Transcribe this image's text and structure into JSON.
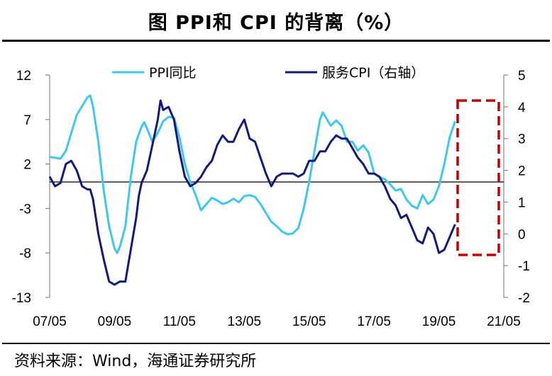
{
  "source": "资料来源：Wind，海通证券研究所",
  "chart_data": {
    "type": "line",
    "title": "图  PPI和 CPI 的背离（%）",
    "x_axis": {
      "tick_labels": [
        "07/05",
        "09/05",
        "11/05",
        "13/05",
        "15/05",
        "17/05",
        "19/05",
        "21/05"
      ],
      "range_months": [
        0,
        168
      ]
    },
    "y_left": {
      "ticks": [
        12,
        7,
        2,
        -3,
        -8,
        -13
      ],
      "range": [
        -13,
        12
      ]
    },
    "y_right": {
      "ticks": [
        5,
        4,
        3,
        2,
        1,
        0,
        -1,
        -2
      ],
      "range": [
        -2,
        5
      ],
      "label": "右轴"
    },
    "highlight": {
      "from_month": 153,
      "to_month": 168,
      "label": "dashed box"
    },
    "series": [
      {
        "name": "PPI同比",
        "axis": "left",
        "color": "#3ec8ef",
        "points": [
          [
            0,
            2.8
          ],
          [
            2,
            2.7
          ],
          [
            4,
            2.6
          ],
          [
            6,
            3.5
          ],
          [
            8,
            5.5
          ],
          [
            10,
            7.5
          ],
          [
            12,
            8.5
          ],
          [
            14,
            9.5
          ],
          [
            15,
            9.7
          ],
          [
            16,
            8.5
          ],
          [
            18,
            4.5
          ],
          [
            20,
            -1
          ],
          [
            22,
            -5
          ],
          [
            24,
            -7.5
          ],
          [
            25,
            -8
          ],
          [
            26,
            -7.3
          ],
          [
            28,
            -5
          ],
          [
            30,
            0.5
          ],
          [
            32,
            4.5
          ],
          [
            34,
            6.2
          ],
          [
            35,
            6.7
          ],
          [
            36,
            6
          ],
          [
            38,
            4.5
          ],
          [
            40,
            5.5
          ],
          [
            42,
            6.8
          ],
          [
            44,
            7.3
          ],
          [
            46,
            7.2
          ],
          [
            48,
            5
          ],
          [
            50,
            2
          ],
          [
            52,
            0
          ],
          [
            54,
            -1.5
          ],
          [
            56,
            -3.2
          ],
          [
            58,
            -2.5
          ],
          [
            60,
            -1.8
          ],
          [
            62,
            -2.1
          ],
          [
            64,
            -2.5
          ],
          [
            66,
            -2.3
          ],
          [
            68,
            -1.9
          ],
          [
            70,
            -2.3
          ],
          [
            72,
            -1.6
          ],
          [
            74,
            -1.5
          ],
          [
            76,
            -1.7
          ],
          [
            78,
            -2.5
          ],
          [
            80,
            -3.5
          ],
          [
            82,
            -4.5
          ],
          [
            84,
            -5
          ],
          [
            86,
            -5.6
          ],
          [
            88,
            -5.9
          ],
          [
            90,
            -5.8
          ],
          [
            92,
            -5.2
          ],
          [
            94,
            -3
          ],
          [
            96,
            0
          ],
          [
            98,
            3.5
          ],
          [
            100,
            7
          ],
          [
            101,
            7.8
          ],
          [
            102,
            7.3
          ],
          [
            104,
            6.3
          ],
          [
            106,
            6.9
          ],
          [
            108,
            6.3
          ],
          [
            110,
            4.5
          ],
          [
            112,
            4.5
          ],
          [
            114,
            3.5
          ],
          [
            116,
            4.1
          ],
          [
            118,
            3.3
          ],
          [
            120,
            1
          ],
          [
            122,
            0.5
          ],
          [
            124,
            0.3
          ],
          [
            126,
            -0.3
          ],
          [
            128,
            -1
          ],
          [
            130,
            -0.8
          ],
          [
            132,
            -2
          ],
          [
            134,
            -2.7
          ],
          [
            136,
            -3
          ],
          [
            138,
            -1.5
          ],
          [
            140,
            -2.5
          ],
          [
            142,
            -2
          ],
          [
            144,
            -0.5
          ],
          [
            146,
            2
          ],
          [
            148,
            5
          ],
          [
            150,
            6.8
          ]
        ]
      },
      {
        "name": "服务CPI（右轴）",
        "axis": "right",
        "color": "#15197a",
        "points": [
          [
            0,
            1.8
          ],
          [
            2,
            1.5
          ],
          [
            4,
            1.6
          ],
          [
            6,
            2.2
          ],
          [
            8,
            2.3
          ],
          [
            10,
            2
          ],
          [
            12,
            1.5
          ],
          [
            14,
            1.4
          ],
          [
            15,
            1.4
          ],
          [
            16,
            1.1
          ],
          [
            18,
            0
          ],
          [
            20,
            -0.8
          ],
          [
            22,
            -1.5
          ],
          [
            24,
            -1.6
          ],
          [
            26,
            -1.5
          ],
          [
            28,
            -1.5
          ],
          [
            30,
            -0.5
          ],
          [
            32,
            0.5
          ],
          [
            33,
            1.2
          ],
          [
            34,
            1.6
          ],
          [
            36,
            2
          ],
          [
            38,
            2.8
          ],
          [
            40,
            3.6
          ],
          [
            41,
            4.2
          ],
          [
            42,
            3.9
          ],
          [
            44,
            4
          ],
          [
            46,
            3.6
          ],
          [
            48,
            2.6
          ],
          [
            50,
            1.8
          ],
          [
            52,
            1.5
          ],
          [
            54,
            1.6
          ],
          [
            56,
            1.8
          ],
          [
            58,
            2.1
          ],
          [
            60,
            2.3
          ],
          [
            62,
            2.8
          ],
          [
            64,
            3.1
          ],
          [
            66,
            2.9
          ],
          [
            68,
            2.9
          ],
          [
            70,
            3.3
          ],
          [
            72,
            3.6
          ],
          [
            74,
            3
          ],
          [
            76,
            2.9
          ],
          [
            78,
            2.4
          ],
          [
            80,
            1.9
          ],
          [
            82,
            1.5
          ],
          [
            84,
            1.8
          ],
          [
            86,
            1.9
          ],
          [
            88,
            1.9
          ],
          [
            90,
            1.9
          ],
          [
            92,
            1.8
          ],
          [
            94,
            1.9
          ],
          [
            96,
            2.3
          ],
          [
            98,
            2.3
          ],
          [
            100,
            2.6
          ],
          [
            102,
            2.6
          ],
          [
            104,
            2.9
          ],
          [
            106,
            3.1
          ],
          [
            108,
            3
          ],
          [
            110,
            3
          ],
          [
            112,
            2.7
          ],
          [
            114,
            2.4
          ],
          [
            116,
            2.2
          ],
          [
            118,
            1.9
          ],
          [
            120,
            1.9
          ],
          [
            122,
            1.8
          ],
          [
            124,
            1.5
          ],
          [
            126,
            1.1
          ],
          [
            128,
            0.9
          ],
          [
            130,
            0.5
          ],
          [
            132,
            0.6
          ],
          [
            134,
            0.2
          ],
          [
            136,
            -0.2
          ],
          [
            138,
            -0.3
          ],
          [
            140,
            0.2
          ],
          [
            142,
            0
          ],
          [
            144,
            -0.6
          ],
          [
            146,
            -0.5
          ],
          [
            148,
            -0.1
          ],
          [
            150,
            0.3
          ]
        ]
      }
    ]
  }
}
